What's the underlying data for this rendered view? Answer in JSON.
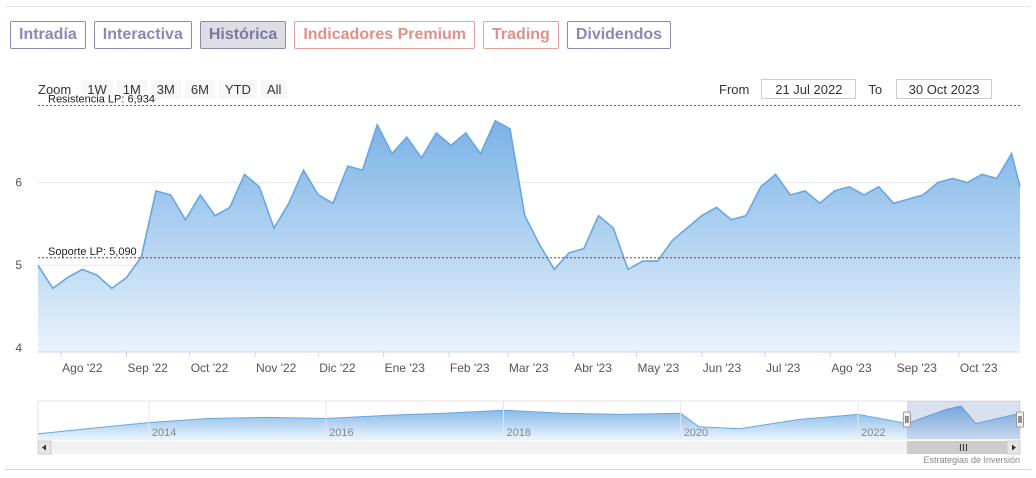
{
  "tabs": [
    {
      "label": "Intradía",
      "style": "normal"
    },
    {
      "label": "Interactiva",
      "style": "normal"
    },
    {
      "label": "Histórica",
      "style": "active"
    },
    {
      "label": "Indicadores Premium",
      "style": "premium"
    },
    {
      "label": "Trading",
      "style": "premium"
    },
    {
      "label": "Dividendos",
      "style": "normal"
    }
  ],
  "zoom": {
    "label": "Zoom",
    "buttons": [
      "1W",
      "1M",
      "3M",
      "6M",
      "YTD",
      "All"
    ]
  },
  "range": {
    "from_label": "From",
    "from_value": "21 Jul 2022",
    "to_label": "To",
    "to_value": "30 Oct 2023"
  },
  "credit": "Estrategias de Inversión",
  "colors": {
    "area_top": "#7ab2e6",
    "area_bottom": "#eaf3fc",
    "line": "#69a6e0",
    "resistance": "#2e8b2e",
    "support": "#a0284a"
  },
  "chart_data": {
    "type": "area",
    "x": [
      "2022-07-21",
      "2022-07-28",
      "2022-08-04",
      "2022-08-11",
      "2022-08-18",
      "2022-08-25",
      "2022-09-01",
      "2022-09-08",
      "2022-09-15",
      "2022-09-22",
      "2022-09-29",
      "2022-10-06",
      "2022-10-13",
      "2022-10-20",
      "2022-10-27",
      "2022-11-03",
      "2022-11-10",
      "2022-11-17",
      "2022-11-24",
      "2022-12-01",
      "2022-12-08",
      "2022-12-15",
      "2022-12-22",
      "2022-12-29",
      "2023-01-05",
      "2023-01-12",
      "2023-01-19",
      "2023-01-26",
      "2023-02-02",
      "2023-02-09",
      "2023-02-16",
      "2023-02-23",
      "2023-03-02",
      "2023-03-09",
      "2023-03-16",
      "2023-03-23",
      "2023-03-30",
      "2023-04-06",
      "2023-04-13",
      "2023-04-20",
      "2023-04-27",
      "2023-05-04",
      "2023-05-11",
      "2023-05-18",
      "2023-05-25",
      "2023-06-01",
      "2023-06-08",
      "2023-06-15",
      "2023-06-22",
      "2023-06-29",
      "2023-07-06",
      "2023-07-13",
      "2023-07-20",
      "2023-07-27",
      "2023-08-03",
      "2023-08-10",
      "2023-08-17",
      "2023-08-24",
      "2023-08-31",
      "2023-09-07",
      "2023-09-14",
      "2023-09-21",
      "2023-09-28",
      "2023-10-05",
      "2023-10-12",
      "2023-10-19",
      "2023-10-26",
      "2023-10-30"
    ],
    "values": [
      5.0,
      4.72,
      4.85,
      4.95,
      4.88,
      4.72,
      4.85,
      5.1,
      5.9,
      5.85,
      5.55,
      5.85,
      5.6,
      5.7,
      6.1,
      5.95,
      5.45,
      5.75,
      6.15,
      5.85,
      5.75,
      6.2,
      6.15,
      6.7,
      6.35,
      6.55,
      6.3,
      6.6,
      6.45,
      6.6,
      6.35,
      6.75,
      6.65,
      5.6,
      5.25,
      4.95,
      5.15,
      5.2,
      5.6,
      5.45,
      4.95,
      5.05,
      5.05,
      5.3,
      5.45,
      5.6,
      5.7,
      5.55,
      5.6,
      5.95,
      6.1,
      5.85,
      5.9,
      5.75,
      5.9,
      5.95,
      5.85,
      5.95,
      5.75,
      5.8,
      5.85,
      6.0,
      6.05,
      6.0,
      6.1,
      6.05,
      6.35,
      5.95
    ],
    "xlabels": [
      "Ago '22",
      "Sep '22",
      "Oct '22",
      "Nov '22",
      "Dic '22",
      "Ene '23",
      "Feb '23",
      "Mar '23",
      "Abr '23",
      "May '23",
      "Jun '23",
      "Jul '23",
      "Ago '23",
      "Sep '23",
      "Oct '23"
    ],
    "xlabel_dates": [
      "2022-08-01",
      "2022-09-01",
      "2022-10-01",
      "2022-11-01",
      "2022-12-01",
      "2023-01-01",
      "2023-02-01",
      "2023-03-01",
      "2023-04-01",
      "2023-05-01",
      "2023-06-01",
      "2023-07-01",
      "2023-08-01",
      "2023-09-01",
      "2023-10-01"
    ],
    "yticks": [
      4,
      5,
      6
    ],
    "ylim": [
      3.95,
      7.0
    ],
    "xlim": [
      "2022-07-21",
      "2023-10-30"
    ],
    "grid": true,
    "annotations": [
      {
        "label": "Resistencia LP: 6,934",
        "value": 6.934,
        "color": "#2e8b2e"
      },
      {
        "label": "Soporte LP: 5,090",
        "value": 5.09,
        "color": "#a0284a"
      }
    ],
    "navigator": {
      "xlim": [
        "2012-10-01",
        "2023-10-30"
      ],
      "labels": [
        "2014",
        "2016",
        "2018",
        "2020",
        "2022"
      ],
      "label_dates": [
        "2014-01-01",
        "2016-01-01",
        "2018-01-01",
        "2020-01-01",
        "2022-01-01"
      ],
      "x": [
        "2012-10-01",
        "2013-06-01",
        "2014-01-01",
        "2014-09-01",
        "2015-05-01",
        "2016-01-01",
        "2016-09-01",
        "2017-05-01",
        "2018-01-01",
        "2018-09-01",
        "2019-05-01",
        "2020-01-01",
        "2020-03-15",
        "2020-09-01",
        "2021-05-01",
        "2022-01-01",
        "2022-07-21",
        "2023-01-01",
        "2023-03-01",
        "2023-05-01",
        "2023-10-30"
      ],
      "values": [
        4.0,
        4.6,
        5.1,
        5.5,
        5.6,
        5.5,
        5.8,
        6.0,
        6.3,
        6.0,
        5.9,
        6.0,
        4.7,
        4.5,
        5.4,
        5.9,
        5.0,
        6.4,
        6.7,
        5.0,
        6.0
      ]
    }
  }
}
